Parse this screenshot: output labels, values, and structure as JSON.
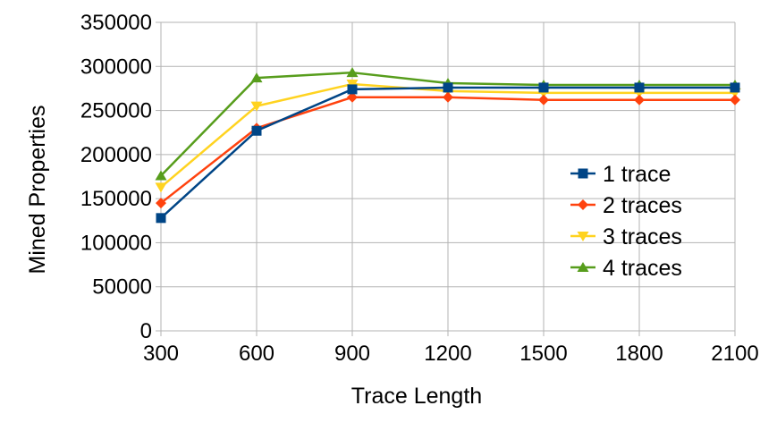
{
  "chart_data": {
    "type": "line",
    "title": "",
    "xlabel": "Trace Length",
    "ylabel": "Mined Properties",
    "x": [
      300,
      600,
      900,
      1200,
      1500,
      1800,
      2100
    ],
    "x_tick_labels": [
      "300",
      "600",
      "900",
      "1200",
      "1500",
      "1800",
      "2100"
    ],
    "ylim": [
      0,
      350000
    ],
    "y_tick_labels": [
      "0",
      "50000",
      "100000",
      "150000",
      "200000",
      "250000",
      "300000",
      "350000"
    ],
    "y_ticks": [
      0,
      50000,
      100000,
      150000,
      200000,
      250000,
      300000,
      350000
    ],
    "grid": true,
    "legend_position": "right",
    "series": [
      {
        "name": "1 trace",
        "color": "#004586",
        "marker": "square",
        "values": [
          128000,
          227000,
          274000,
          276000,
          276000,
          276000,
          276000
        ]
      },
      {
        "name": "2 traces",
        "color": "#ff420e",
        "marker": "diamond",
        "values": [
          145000,
          230000,
          265000,
          265000,
          262000,
          262000,
          262000
        ]
      },
      {
        "name": "3 traces",
        "color": "#ffd320",
        "marker": "triangle-down",
        "values": [
          163000,
          255000,
          280000,
          272000,
          270000,
          270000,
          270000
        ]
      },
      {
        "name": "4 traces",
        "color": "#579d1c",
        "marker": "triangle-up",
        "values": [
          176000,
          287000,
          293000,
          281000,
          279000,
          279000,
          279000
        ]
      }
    ]
  }
}
